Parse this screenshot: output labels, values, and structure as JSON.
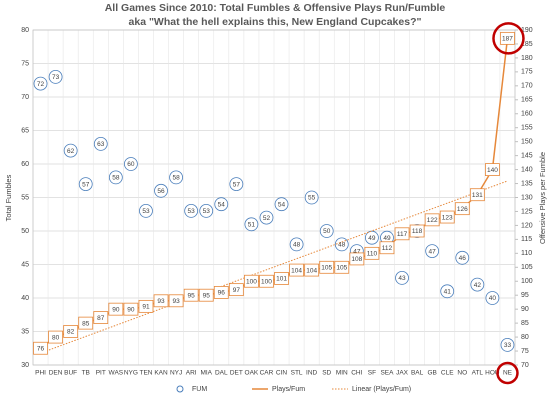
{
  "chart_data": {
    "type": "combo",
    "title": "All Games Since 2010: Total Fumbles & Offensive Plays Run/Fumble",
    "subtitle": "aka \"What the hell explains this, New England Cupcakes?\"",
    "ylabel": "Total Fumbles",
    "y2label": "Offensive Plays per Fumble",
    "categories": [
      "PHI",
      "DEN",
      "BUF",
      "TB",
      "PIT",
      "WAS",
      "NYG",
      "TEN",
      "KAN",
      "NYJ",
      "ARI",
      "MIA",
      "DAL",
      "DET",
      "OAK",
      "CAR",
      "CIN",
      "STL",
      "IND",
      "SD",
      "MIN",
      "CHI",
      "SF",
      "SEA",
      "JAX",
      "BAL",
      "GB",
      "CLE",
      "NO",
      "ATL",
      "HOU",
      "NE"
    ],
    "series": [
      {
        "name": "FUM",
        "type": "scatter",
        "color": "#4a7ebb",
        "values": [
          72,
          73,
          62,
          57,
          63,
          58,
          60,
          53,
          56,
          58,
          53,
          53,
          54,
          57,
          51,
          52,
          54,
          48,
          55,
          50,
          48,
          47,
          49,
          49,
          43,
          50,
          47,
          41,
          46,
          42,
          40,
          33
        ]
      },
      {
        "name": "Plays/Fum",
        "type": "line",
        "axis": "y2",
        "color": "#e6883a",
        "trendline": "Linear (Plays/Fum)",
        "values": [
          76,
          80,
          82,
          85,
          87,
          90,
          90,
          91,
          93,
          93,
          95,
          95,
          96,
          97,
          100,
          100,
          101,
          104,
          104,
          105,
          105,
          108,
          110,
          112,
          117,
          118,
          122,
          123,
          126,
          131,
          140,
          187
        ]
      }
    ],
    "ylim": [
      30,
      80
    ],
    "yticks": [
      30,
      35,
      40,
      45,
      50,
      55,
      60,
      65,
      70,
      75,
      80
    ],
    "y2lim": [
      70,
      190
    ],
    "y2ticks": [
      70,
      75,
      80,
      85,
      90,
      95,
      100,
      105,
      110,
      115,
      120,
      125,
      130,
      135,
      140,
      145,
      150,
      155,
      160,
      165,
      170,
      175,
      180,
      185,
      190
    ],
    "grid": true,
    "legend": "bottom"
  }
}
